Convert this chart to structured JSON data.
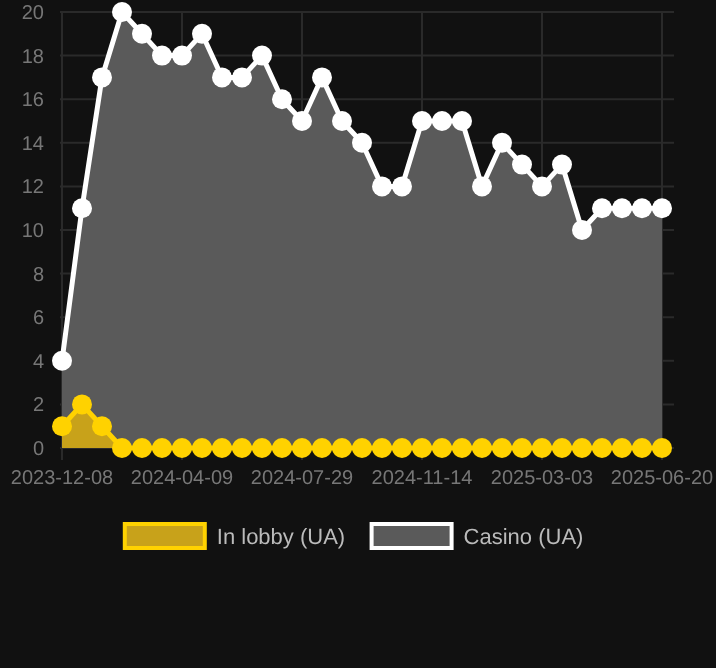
{
  "chart_data": {
    "type": "area",
    "categories": [
      "2023-12-08",
      null,
      null,
      null,
      null,
      null,
      "2024-04-09",
      null,
      null,
      null,
      null,
      null,
      "2024-07-29",
      null,
      null,
      null,
      null,
      null,
      "2024-11-14",
      null,
      null,
      null,
      null,
      null,
      "2025-03-03",
      null,
      null,
      null,
      null,
      null,
      "2025-06-20"
    ],
    "series": [
      {
        "name": "In lobby (UA)",
        "color": "#ffd200",
        "values": [
          1,
          2,
          1,
          0,
          0,
          0,
          0,
          0,
          0,
          0,
          0,
          0,
          0,
          0,
          0,
          0,
          0,
          0,
          0,
          0,
          0,
          0,
          0,
          0,
          0,
          0,
          0,
          0,
          0,
          0,
          0
        ]
      },
      {
        "name": "Casino (UA)",
        "color": "#ffffff",
        "values": [
          4,
          11,
          17,
          20,
          19,
          18,
          18,
          19,
          17,
          17,
          18,
          16,
          15,
          17,
          15,
          14,
          12,
          12,
          15,
          15,
          15,
          12,
          14,
          13,
          12,
          13,
          10,
          11,
          11,
          11,
          11
        ]
      }
    ],
    "ylim": [
      0,
      20
    ],
    "yticks": [
      0,
      2,
      4,
      6,
      8,
      10,
      12,
      14,
      16,
      18,
      20
    ],
    "grid": true,
    "legend": "bottom",
    "marker": "circle"
  }
}
